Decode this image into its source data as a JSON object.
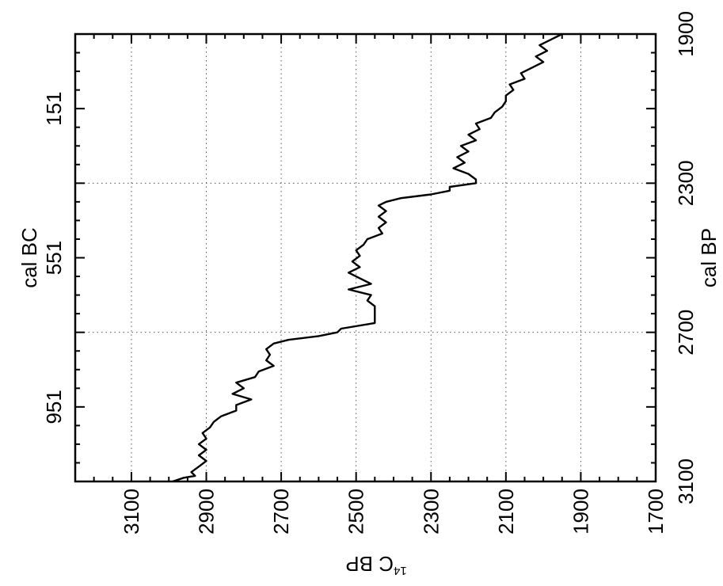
{
  "chart_data": {
    "type": "line",
    "orientation": "rotated-90",
    "axes": {
      "c14": {
        "label": "14C BP",
        "label_sup": "14",
        "label_main": "C BP",
        "range": [
          1700,
          3250
        ],
        "reversed": true,
        "tick_labels": [
          "3100",
          "2900",
          "2700",
          "2500",
          "2300",
          "2100",
          "1900",
          "1700"
        ],
        "tick_values": [
          3100,
          2900,
          2700,
          2500,
          2300,
          2100,
          1900,
          1700
        ]
      },
      "cal_bp": {
        "label": "cal BP",
        "range": [
          1900,
          3100
        ],
        "tick_labels": [
          "1900",
          "2300",
          "2700",
          "3100"
        ],
        "tick_values": [
          1900,
          2300,
          2700,
          3100
        ]
      },
      "cal_bc": {
        "label": "cal BC",
        "tick_labels": [
          "151",
          "551",
          "951"
        ],
        "tick_values": [
          151,
          551,
          951
        ]
      }
    },
    "grid": true,
    "series": [
      {
        "x": [
          1900,
          1915,
          1930,
          1945,
          1960,
          1975,
          1990,
          2005,
          2020,
          2035,
          2050,
          2065,
          2080,
          2095,
          2110,
          2125,
          2140,
          2155,
          2170,
          2185,
          2200,
          2215,
          2230,
          2245,
          2260,
          2275,
          2290,
          2300,
          2310,
          2320,
          2330,
          2340,
          2350,
          2360,
          2375,
          2390,
          2405,
          2420,
          2435,
          2450,
          2465,
          2480,
          2495,
          2510,
          2525,
          2540,
          2555,
          2570,
          2585,
          2600,
          2615,
          2630,
          2645,
          2660,
          2675,
          2690,
          2700,
          2710,
          2720,
          2730,
          2745,
          2760,
          2775,
          2790,
          2805,
          2820,
          2835,
          2850,
          2865,
          2880,
          2895,
          2910,
          2925,
          2940,
          2955,
          2970,
          2985,
          3000,
          3015,
          3030,
          3045,
          3060,
          3075,
          3085,
          3090,
          3100
        ],
        "y": [
          1950,
          1980,
          2010,
          1990,
          2020,
          2000,
          2030,
          2060,
          2050,
          2090,
          2080,
          2100,
          2100,
          2110,
          2130,
          2140,
          2180,
          2170,
          2200,
          2180,
          2220,
          2200,
          2230,
          2210,
          2240,
          2200,
          2180,
          2180,
          2250,
          2250,
          2300,
          2380,
          2420,
          2440,
          2420,
          2440,
          2420,
          2440,
          2430,
          2470,
          2480,
          2500,
          2490,
          2510,
          2490,
          2520,
          2490,
          2460,
          2520,
          2460,
          2470,
          2450,
          2450,
          2450,
          2450,
          2540,
          2550,
          2600,
          2680,
          2720,
          2740,
          2730,
          2740,
          2720,
          2760,
          2770,
          2820,
          2800,
          2830,
          2780,
          2820,
          2820,
          2860,
          2880,
          2890,
          2910,
          2900,
          2920,
          2900,
          2920,
          2900,
          2920,
          2940,
          2930,
          2960,
          2990
        ]
      }
    ]
  }
}
